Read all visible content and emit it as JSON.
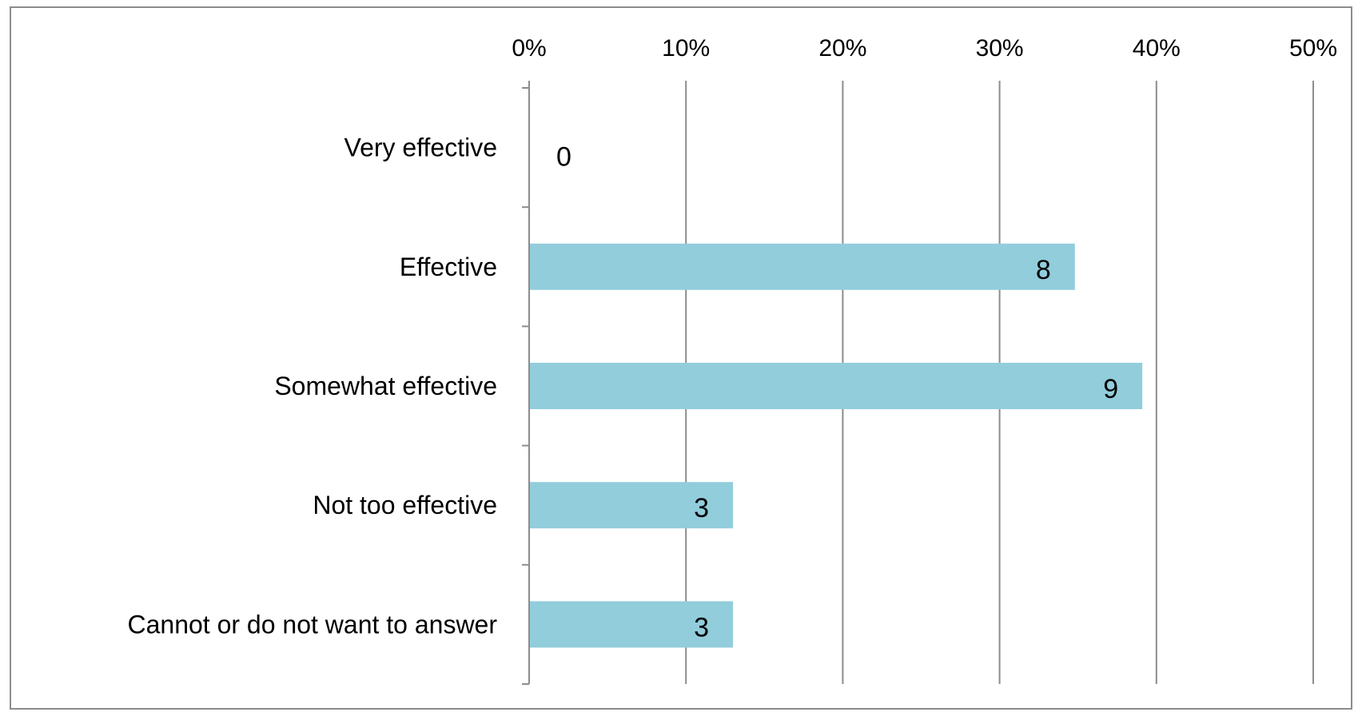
{
  "chart_data": {
    "type": "bar",
    "orientation": "horizontal",
    "categories": [
      "Very effective",
      "Effective",
      "Somewhat effective",
      "Not too effective",
      "Cannot or do not want to answer"
    ],
    "values": [
      0,
      8,
      9,
      3,
      3
    ],
    "percentages": [
      0,
      34.8,
      39.1,
      13.0,
      13.0
    ],
    "data_labels": [
      "0",
      "8",
      "9",
      "3",
      "3"
    ],
    "xlim": [
      0,
      50
    ],
    "x_ticks": [
      "0%",
      "10%",
      "20%",
      "30%",
      "40%",
      "50%"
    ],
    "x_axis_position": "top",
    "grid": true,
    "legend": "none",
    "title": "",
    "xlabel": "",
    "ylabel": "",
    "colors": {
      "bar": "#92cddc",
      "grid": "#8c8c8c",
      "axis": "#8c8c8c",
      "frame": "#8c8c8c",
      "text": "#000000"
    }
  }
}
